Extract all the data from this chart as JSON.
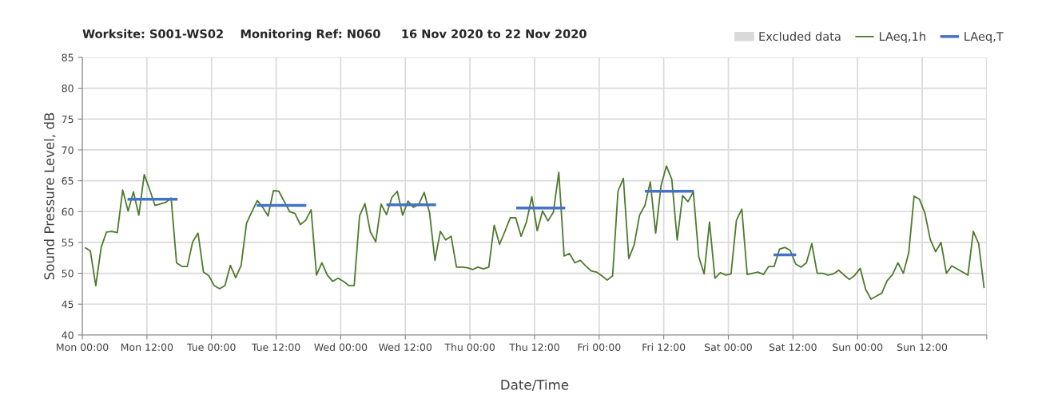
{
  "chart_data": {
    "type": "line",
    "title": "Worksite: S001-WS02    Monitoring Ref: N060     16 Nov 2020 to 22 Nov 2020",
    "xlabel": "Date/Time",
    "ylabel": "Sound Pressure Level, dB",
    "xlim": [
      "2020-11-16T00:00",
      "2020-11-23T00:00"
    ],
    "ylim": [
      40,
      85
    ],
    "xticks": [
      {
        "value": "2020-11-16T00:00",
        "label": "Mon 00:00"
      },
      {
        "value": "2020-11-16T12:00",
        "label": "Mon 12:00"
      },
      {
        "value": "2020-11-17T00:00",
        "label": "Tue 00:00"
      },
      {
        "value": "2020-11-17T12:00",
        "label": "Tue 12:00"
      },
      {
        "value": "2020-11-18T00:00",
        "label": "Wed 00:00"
      },
      {
        "value": "2020-11-18T12:00",
        "label": "Wed 12:00"
      },
      {
        "value": "2020-11-19T00:00",
        "label": "Thu 00:00"
      },
      {
        "value": "2020-11-19T12:00",
        "label": "Thu 12:00"
      },
      {
        "value": "2020-11-20T00:00",
        "label": "Fri 00:00"
      },
      {
        "value": "2020-11-20T12:00",
        "label": "Fri 12:00"
      },
      {
        "value": "2020-11-21T00:00",
        "label": "Sat 00:00"
      },
      {
        "value": "2020-11-21T12:00",
        "label": "Sat 12:00"
      },
      {
        "value": "2020-11-22T00:00",
        "label": "Sun 00:00"
      },
      {
        "value": "2020-11-22T12:00",
        "label": "Sun 12:00"
      },
      {
        "value": "2020-11-23T00:00",
        "label": null
      }
    ],
    "yticks": [
      40,
      45,
      50,
      55,
      60,
      65,
      70,
      75,
      80,
      85
    ],
    "grid": true,
    "legend": "top right",
    "marker": "none",
    "line_style": "solid",
    "series": [
      {
        "name": "Excluded data",
        "type": "area",
        "color": "#d9d9d9"
      },
      {
        "name": "LAeq,1h",
        "color": "#4e7a2e",
        "x": [
          "2020-11-16T00:30",
          "2020-11-16T01:30",
          "2020-11-16T02:30",
          "2020-11-16T03:30",
          "2020-11-16T04:30",
          "2020-11-16T05:30",
          "2020-11-16T06:30",
          "2020-11-16T07:30",
          "2020-11-16T08:30",
          "2020-11-16T09:30",
          "2020-11-16T10:30",
          "2020-11-16T11:30",
          "2020-11-16T12:30",
          "2020-11-16T13:30",
          "2020-11-16T15:30",
          "2020-11-16T16:30",
          "2020-11-16T17:30",
          "2020-11-16T18:30",
          "2020-11-16T19:30",
          "2020-11-16T20:30",
          "2020-11-16T21:30",
          "2020-11-16T22:30",
          "2020-11-16T23:30",
          "2020-11-17T00:30",
          "2020-11-17T01:30",
          "2020-11-17T02:30",
          "2020-11-17T03:30",
          "2020-11-17T04:30",
          "2020-11-17T05:30",
          "2020-11-17T06:30",
          "2020-11-17T07:30",
          "2020-11-17T08:30",
          "2020-11-17T09:30",
          "2020-11-17T10:30",
          "2020-11-17T11:30",
          "2020-11-17T12:30",
          "2020-11-17T14:30",
          "2020-11-17T15:30",
          "2020-11-17T16:30",
          "2020-11-17T17:30",
          "2020-11-17T18:30",
          "2020-11-17T19:30",
          "2020-11-17T20:30",
          "2020-11-17T21:30",
          "2020-11-17T22:30",
          "2020-11-17T23:30",
          "2020-11-18T00:30",
          "2020-11-18T01:30",
          "2020-11-18T02:30",
          "2020-11-18T03:30",
          "2020-11-18T04:30",
          "2020-11-18T05:30",
          "2020-11-18T06:30",
          "2020-11-18T07:30",
          "2020-11-18T08:30",
          "2020-11-18T09:30",
          "2020-11-18T10:30",
          "2020-11-18T11:30",
          "2020-11-18T12:30",
          "2020-11-18T13:30",
          "2020-11-18T14:30",
          "2020-11-18T15:30",
          "2020-11-18T16:30",
          "2020-11-18T17:30",
          "2020-11-18T18:30",
          "2020-11-18T19:30",
          "2020-11-18T20:30",
          "2020-11-18T21:30",
          "2020-11-18T22:30",
          "2020-11-18T23:30",
          "2020-11-19T00:30",
          "2020-11-19T01:30",
          "2020-11-19T02:30",
          "2020-11-19T03:30",
          "2020-11-19T04:30",
          "2020-11-19T05:30",
          "2020-11-19T06:30",
          "2020-11-19T07:30",
          "2020-11-19T08:30",
          "2020-11-19T09:30",
          "2020-11-19T10:30",
          "2020-11-19T11:30",
          "2020-11-19T12:30",
          "2020-11-19T13:30",
          "2020-11-19T14:30",
          "2020-11-19T15:30",
          "2020-11-19T16:30",
          "2020-11-19T17:30",
          "2020-11-19T18:30",
          "2020-11-19T19:30",
          "2020-11-19T20:30",
          "2020-11-19T21:30",
          "2020-11-19T22:30",
          "2020-11-19T23:30",
          "2020-11-20T00:30",
          "2020-11-20T01:30",
          "2020-11-20T02:30",
          "2020-11-20T03:30",
          "2020-11-20T04:30",
          "2020-11-20T05:30",
          "2020-11-20T06:30",
          "2020-11-20T07:30",
          "2020-11-20T08:30",
          "2020-11-20T09:30",
          "2020-11-20T10:30",
          "2020-11-20T11:30",
          "2020-11-20T12:30",
          "2020-11-20T13:30",
          "2020-11-20T14:30",
          "2020-11-20T15:30",
          "2020-11-20T16:30",
          "2020-11-20T17:30",
          "2020-11-20T18:30",
          "2020-11-20T19:30",
          "2020-11-20T20:30",
          "2020-11-20T21:30",
          "2020-11-20T22:30",
          "2020-11-20T23:30",
          "2020-11-21T00:30",
          "2020-11-21T01:30",
          "2020-11-21T02:30",
          "2020-11-21T03:30",
          "2020-11-21T04:30",
          "2020-11-21T05:30",
          "2020-11-21T06:30",
          "2020-11-21T07:30",
          "2020-11-21T08:30",
          "2020-11-21T09:30",
          "2020-11-21T10:30",
          "2020-11-21T11:30",
          "2020-11-21T12:30",
          "2020-11-21T13:30",
          "2020-11-21T14:30",
          "2020-11-21T15:30",
          "2020-11-21T16:30",
          "2020-11-21T17:30",
          "2020-11-21T18:30",
          "2020-11-21T19:30",
          "2020-11-21T20:30",
          "2020-11-21T21:30",
          "2020-11-21T22:30",
          "2020-11-21T23:30",
          "2020-11-22T00:30",
          "2020-11-22T01:30",
          "2020-11-22T02:30",
          "2020-11-22T03:30",
          "2020-11-22T04:30",
          "2020-11-22T05:30",
          "2020-11-22T06:30",
          "2020-11-22T07:30",
          "2020-11-22T08:30",
          "2020-11-22T09:30",
          "2020-11-22T10:30",
          "2020-11-22T11:30",
          "2020-11-22T12:30",
          "2020-11-22T13:30",
          "2020-11-22T14:30",
          "2020-11-22T15:30",
          "2020-11-22T16:30",
          "2020-11-22T17:30",
          "2020-11-22T19:30",
          "2020-11-22T20:30",
          "2020-11-22T21:30",
          "2020-11-22T22:30",
          "2020-11-22T23:30"
        ],
        "values": [
          54.2,
          53.6,
          48.0,
          54.2,
          56.7,
          56.8,
          56.6,
          63.5,
          60.1,
          63.2,
          59.4,
          66.0,
          63.6,
          61.0,
          61.5,
          62.2,
          51.7,
          51.1,
          51.1,
          55.1,
          56.5,
          50.2,
          49.6,
          48.0,
          47.5,
          48.0,
          51.3,
          49.3,
          51.3,
          58.1,
          60.0,
          61.8,
          60.7,
          59.3,
          63.4,
          63.3,
          60.0,
          59.7,
          57.9,
          58.6,
          60.3,
          49.7,
          51.7,
          49.7,
          48.7,
          49.2,
          48.7,
          48.0,
          48.0,
          59.3,
          61.3,
          56.7,
          55.1,
          61.2,
          59.5,
          62.3,
          63.3,
          59.4,
          61.7,
          60.7,
          61.2,
          63.1,
          59.8,
          52.1,
          56.8,
          55.4,
          56.0,
          51.0,
          51.0,
          50.9,
          50.6,
          51.0,
          50.7,
          51.0,
          57.8,
          54.7,
          56.8,
          59.0,
          59.0,
          56.0,
          58.3,
          62.4,
          56.9,
          60.1,
          58.5,
          59.9,
          66.4,
          52.8,
          53.2,
          51.7,
          52.1,
          51.2,
          50.4,
          50.2,
          49.6,
          48.9,
          49.6,
          63.3,
          65.4,
          52.4,
          54.6,
          59.4,
          61.0,
          64.8,
          56.5,
          64.2,
          67.4,
          65.2,
          55.4,
          62.6,
          61.6,
          63.2,
          52.7,
          49.9,
          58.3,
          49.2,
          50.1,
          49.7,
          49.9,
          58.6,
          60.4,
          49.8,
          50.0,
          50.2,
          49.8,
          51.1,
          51.1,
          53.9,
          54.2,
          53.7,
          51.5,
          51.0,
          51.7,
          54.8,
          50.0,
          50.0,
          49.7,
          49.9,
          50.5,
          49.7,
          49.0,
          49.7,
          50.8,
          47.4,
          45.8,
          46.3,
          46.8,
          48.8,
          49.8,
          51.7,
          50.0,
          53.3,
          62.5,
          62.0,
          59.8,
          55.5,
          53.5,
          55.0,
          50.0,
          51.2,
          50.2,
          49.7,
          56.8,
          54.8,
          47.6
        ]
      },
      {
        "name": "LAeq,T",
        "type": "line",
        "color": "#4472c4",
        "x": [
          "2020-11-16T08:24",
          "2020-11-16T17:42",
          null,
          "2020-11-17T08:24",
          "2020-11-17T17:36",
          null,
          "2020-11-18T08:30",
          "2020-11-18T17:42",
          null,
          "2020-11-19T08:36",
          "2020-11-19T17:42",
          null,
          "2020-11-20T08:30",
          "2020-11-20T17:36",
          null,
          "2020-11-21T08:24",
          "2020-11-21T12:36"
        ],
        "values": [
          62.0,
          62.0,
          null,
          61.0,
          61.0,
          null,
          61.1,
          61.1,
          null,
          60.6,
          60.6,
          null,
          63.3,
          63.3,
          null,
          53.0,
          53.0
        ]
      }
    ]
  }
}
